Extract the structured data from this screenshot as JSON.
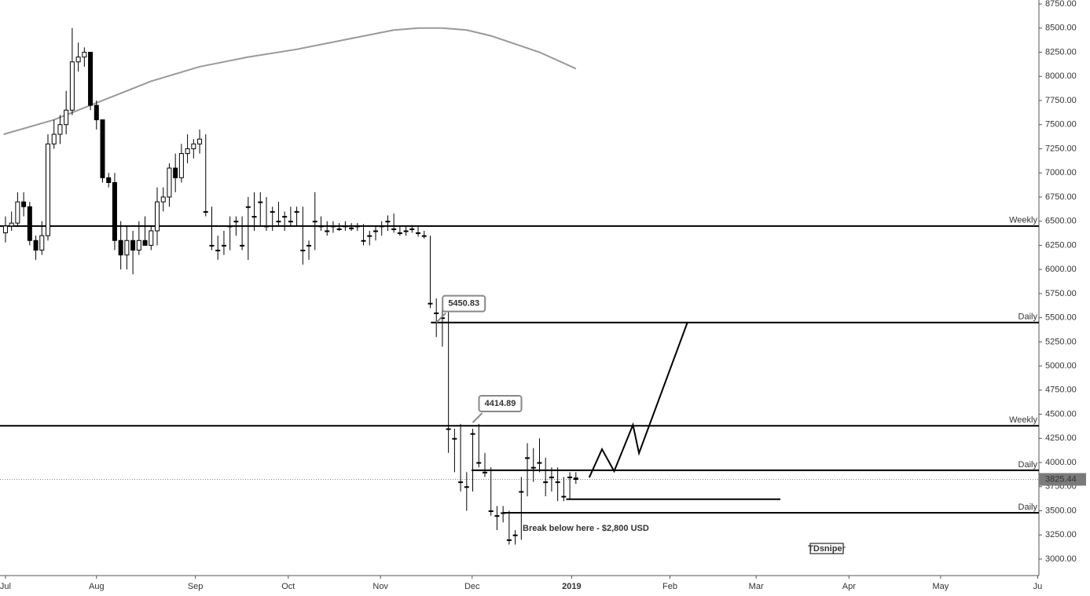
{
  "chart_data": {
    "type": "candlestick",
    "categories": [
      null,
      null,
      null,
      null,
      null,
      null,
      null,
      null,
      null,
      null,
      null,
      null,
      null,
      null,
      null,
      null,
      null,
      null,
      null,
      null,
      null,
      null,
      null,
      null,
      null,
      null,
      null,
      null,
      null,
      null,
      null,
      null,
      null,
      null,
      null,
      null,
      null,
      null,
      null,
      null,
      null,
      null,
      null,
      null,
      null,
      null,
      null,
      null,
      null,
      null,
      null,
      null,
      null,
      null,
      null,
      null,
      null,
      null,
      null,
      null,
      null,
      null,
      null,
      null,
      null,
      null,
      null,
      null,
      null,
      null,
      null,
      null,
      null,
      null,
      null,
      null,
      null,
      null,
      null,
      null,
      null,
      null,
      null,
      null,
      null,
      null,
      null,
      null,
      null,
      null,
      null,
      null,
      null,
      null,
      null
    ],
    "open": [
      6380,
      6450,
      6480,
      6700,
      6650,
      6300,
      6200,
      6350,
      7300,
      7400,
      7500,
      7650,
      8150,
      8200,
      8250,
      7700,
      7550,
      6950,
      6900,
      6300,
      6150,
      6300,
      6200,
      6300,
      6250,
      6400,
      6700,
      6750,
      7050,
      6950,
      7200,
      7250,
      7300,
      6600,
      6250,
      6200,
      6250,
      6450,
      6500,
      6250,
      6650,
      6550,
      6700,
      6450,
      6600,
      6500,
      6550,
      6500,
      6600,
      6200,
      6250,
      6500,
      6450,
      6400,
      6450,
      6420,
      6450,
      6430,
      6450,
      6300,
      6350,
      6400,
      6450,
      6500,
      6420,
      6380,
      6400,
      6420,
      6380,
      6350,
      5650,
      5550,
      5500,
      4350,
      4250,
      3800,
      3750,
      4300,
      4000,
      3900,
      3500,
      3450,
      3480,
      3200,
      3250,
      3700,
      4050,
      3950,
      4000,
      3800,
      3850,
      3800,
      3650,
      3850,
      3840
    ],
    "high": [
      6550,
      6600,
      6800,
      6800,
      6700,
      6350,
      6500,
      7400,
      7550,
      7600,
      7850,
      8500,
      8350,
      8300,
      8250,
      7750,
      7550,
      7000,
      7000,
      6500,
      6450,
      6400,
      6500,
      6550,
      6450,
      6850,
      6850,
      7100,
      7200,
      7300,
      7400,
      7350,
      7450,
      7400,
      6650,
      6350,
      6400,
      6550,
      6550,
      6550,
      6750,
      6800,
      6800,
      6750,
      6650,
      6700,
      6600,
      6650,
      6650,
      6650,
      6300,
      6800,
      6550,
      6500,
      6500,
      6480,
      6500,
      6480,
      6480,
      6470,
      6400,
      6450,
      6500,
      6560,
      6580,
      6450,
      6450,
      6460,
      6440,
      6400,
      6350,
      5700,
      5650,
      5600,
      4350,
      4400,
      3900,
      4350,
      4400,
      4100,
      3950,
      3550,
      3550,
      3500,
      3300,
      3850,
      4200,
      4150,
      4250,
      4050,
      3950,
      3950,
      3850,
      3900,
      3900
    ],
    "low": [
      6280,
      6400,
      6450,
      6550,
      6250,
      6100,
      6150,
      6300,
      7250,
      7300,
      7400,
      7600,
      8050,
      8100,
      7650,
      7450,
      6900,
      6850,
      6200,
      6000,
      6000,
      5950,
      6150,
      6250,
      6200,
      6250,
      6600,
      6650,
      6800,
      6900,
      7100,
      7150,
      7200,
      6550,
      6200,
      6100,
      6150,
      6200,
      6350,
      6200,
      6100,
      6400,
      6450,
      6400,
      6400,
      6450,
      6400,
      6450,
      6450,
      6050,
      6100,
      6200,
      6400,
      6350,
      6380,
      6400,
      6400,
      6400,
      6400,
      6250,
      6250,
      6300,
      6350,
      6400,
      6380,
      6350,
      6350,
      6380,
      6340,
      6320,
      5600,
      5300,
      5200,
      4100,
      3900,
      3700,
      3500,
      3700,
      3950,
      3850,
      3450,
      3300,
      3380,
      3150,
      3150,
      3200,
      3650,
      3800,
      3900,
      3650,
      3700,
      3600,
      3600,
      3620,
      3780
    ],
    "close": [
      6450,
      6480,
      6700,
      6650,
      6300,
      6200,
      6350,
      7300,
      7400,
      7500,
      7650,
      8150,
      8200,
      8250,
      7700,
      7550,
      6950,
      6900,
      6300,
      6150,
      6300,
      6200,
      6300,
      6250,
      6400,
      6700,
      6750,
      7050,
      6950,
      7200,
      7250,
      7300,
      7350,
      6600,
      6250,
      6200,
      6250,
      6450,
      6500,
      6250,
      6650,
      6550,
      6700,
      6450,
      6600,
      6500,
      6550,
      6500,
      6600,
      6200,
      6250,
      6500,
      6450,
      6400,
      6450,
      6420,
      6450,
      6430,
      6450,
      6300,
      6350,
      6400,
      6450,
      6500,
      6420,
      6380,
      6400,
      6420,
      6380,
      6350,
      5650,
      5550,
      5500,
      4350,
      4250,
      3800,
      3750,
      4300,
      4000,
      3900,
      3500,
      3450,
      3480,
      3200,
      3250,
      3700,
      4050,
      3950,
      4000,
      3800,
      3850,
      3800,
      3650,
      3850,
      3825
    ],
    "moving_average": {
      "x": [
        -0.3,
        8,
        16,
        24,
        32,
        40,
        48,
        56,
        64,
        68,
        72,
        76,
        80,
        88,
        94
      ],
      "values": [
        7400,
        7550,
        7750,
        7950,
        8100,
        8200,
        8280,
        8380,
        8480,
        8500,
        8500,
        8480,
        8420,
        8250,
        8080
      ]
    },
    "projection": {
      "x": [
        96.2,
        98.3,
        100.3,
        103.4,
        104.4,
        112.4
      ],
      "values": [
        3845,
        4138,
        3910,
        4390,
        4097,
        5455
      ]
    },
    "levels": [
      {
        "label": "Weekly",
        "value": 6450,
        "start": -0.9,
        "end": 170.3
      },
      {
        "label": "Daily",
        "value": 5450,
        "start": 70.1,
        "end": 170.3
      },
      {
        "label": "Weekly",
        "value": 4380,
        "start": -0.9,
        "end": 170.3
      },
      {
        "label": "Daily",
        "value": 3920,
        "start": 76.8,
        "end": 170.3
      },
      {
        "label": "Daily",
        "value": 3480,
        "start": 82,
        "end": 170.3
      },
      {
        "value": 3620,
        "start": 92.4,
        "end": 127.7
      }
    ],
    "callouts": [
      {
        "value": 5450.83,
        "x": 71
      },
      {
        "value": 4414.89,
        "x": 77
      }
    ],
    "current_price": 3825.44,
    "annotation": "Break below here - $2,800 USD",
    "watermark": "TDsniper",
    "xlim": [
      -0.9,
      170.3
    ],
    "ylim": [
      2829,
      8791
    ],
    "xticks": [
      {
        "value": 0,
        "label": "Jul"
      },
      {
        "value": 15,
        "label": "Aug"
      },
      {
        "value": 31.3,
        "label": "Sep"
      },
      {
        "value": 46.6,
        "label": "Oct"
      },
      {
        "value": 61.8,
        "label": "Nov"
      },
      {
        "value": 76.9,
        "label": "Dec"
      },
      {
        "value": 93.3,
        "label": "2019"
      },
      {
        "value": 109.5,
        "label": "Feb"
      },
      {
        "value": 123.7,
        "label": "Mar"
      },
      {
        "value": 139,
        "label": "Apr"
      },
      {
        "value": 154.1,
        "label": "May"
      },
      {
        "value": 170.1,
        "label": "Ju"
      }
    ],
    "yticks": [
      {
        "value": 3000,
        "label": "3000.00"
      },
      {
        "value": 3250,
        "label": "3250.00"
      },
      {
        "value": 3500,
        "label": "3500.00"
      },
      {
        "value": 3750,
        "label": "3750.00"
      },
      {
        "value": 4000,
        "label": "4000.00"
      },
      {
        "value": 4250,
        "label": "4250.00"
      },
      {
        "value": 4500,
        "label": "4500.00"
      },
      {
        "value": 4750,
        "label": "4750.00"
      },
      {
        "value": 5000,
        "label": "5000.00"
      },
      {
        "value": 5250,
        "label": "5250.00"
      },
      {
        "value": 5500,
        "label": "5500.00"
      },
      {
        "value": 5750,
        "label": "5750.00"
      },
      {
        "value": 6000,
        "label": "6000.00"
      },
      {
        "value": 6250,
        "label": "6250.00"
      },
      {
        "value": 6500,
        "label": "6500.00"
      },
      {
        "value": 6750,
        "label": "6750.00"
      },
      {
        "value": 7000,
        "label": "7000.00"
      },
      {
        "value": 7250,
        "label": "7250.00"
      },
      {
        "value": 7500,
        "label": "7500.00"
      },
      {
        "value": 7750,
        "label": "7750.00"
      },
      {
        "value": 8000,
        "label": "8000.00"
      },
      {
        "value": 8250,
        "label": "8250.00"
      },
      {
        "value": 8500,
        "label": "8500.00"
      },
      {
        "value": 8750,
        "label": "8750.00"
      }
    ],
    "up_color": "#ffffff",
    "down_color": "#000000",
    "ma_color": "#999999"
  }
}
